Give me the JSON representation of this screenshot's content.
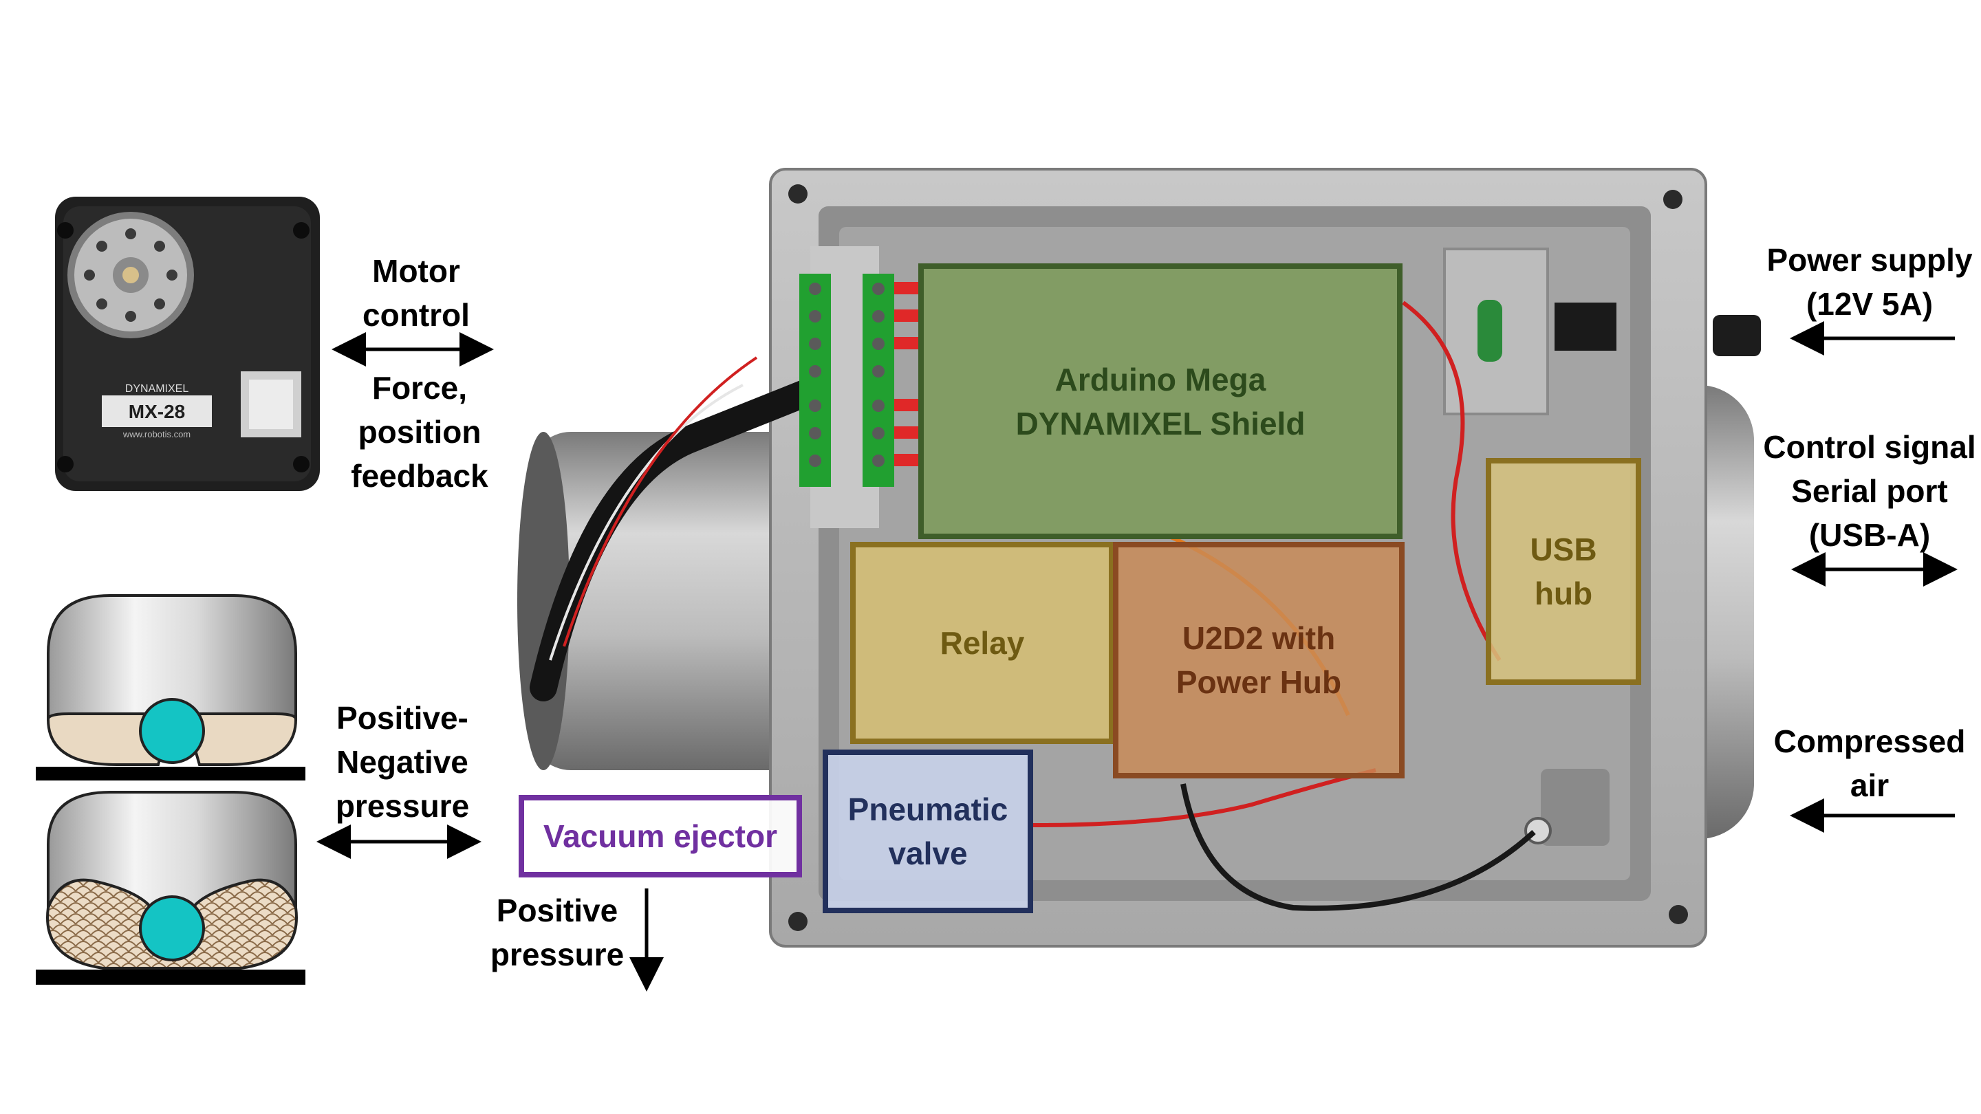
{
  "labels": {
    "motor": [
      "Motor",
      "control"
    ],
    "force": [
      "Force,",
      "position",
      "feedback"
    ],
    "pressure_pn": [
      "Positive-",
      "Negative",
      "pressure"
    ],
    "positive_pressure": [
      "Positive",
      "pressure"
    ],
    "power": [
      "Power supply",
      "(12V 5A)"
    ],
    "control": [
      "Control signal",
      "Serial port",
      "(USB-A)"
    ],
    "air": [
      "Compressed",
      "air"
    ]
  },
  "components": {
    "arduino": [
      "Arduino Mega",
      "DYNAMIXEL Shield"
    ],
    "relay": "Relay",
    "u2d2": [
      "U2D2 with",
      "Power Hub"
    ],
    "usb": [
      "USB",
      "hub"
    ],
    "pneumatic": [
      "Pneumatic",
      "valve"
    ],
    "ejector": "Vacuum ejector"
  },
  "servo": {
    "brand": "DYNAMIXEL",
    "model": "MX-28",
    "url": "www.robotis.com"
  },
  "colors": {
    "arduino_fill": "#7a9a55",
    "arduino_border": "#3f5e2a",
    "arduino_text": "#2c4a1c",
    "relay_fill": "#d8c070",
    "relay_border": "#8a7020",
    "relay_text": "#6e5a12",
    "u2d2_fill": "#c98a55",
    "u2d2_border": "#8a4a22",
    "u2d2_text": "#6a3212",
    "usb_fill": "#d6c27e",
    "usb_border": "#8a7020",
    "usb_text": "#6e5a12",
    "pneumatic_fill": "#c8d2ea",
    "pneumatic_border": "#22305c",
    "pneumatic_text": "#22305c",
    "ejector_border": "#7030a0",
    "ejector_text": "#7030a0",
    "enclosure": "#9a9a9a",
    "ball": "#14c4c4"
  }
}
